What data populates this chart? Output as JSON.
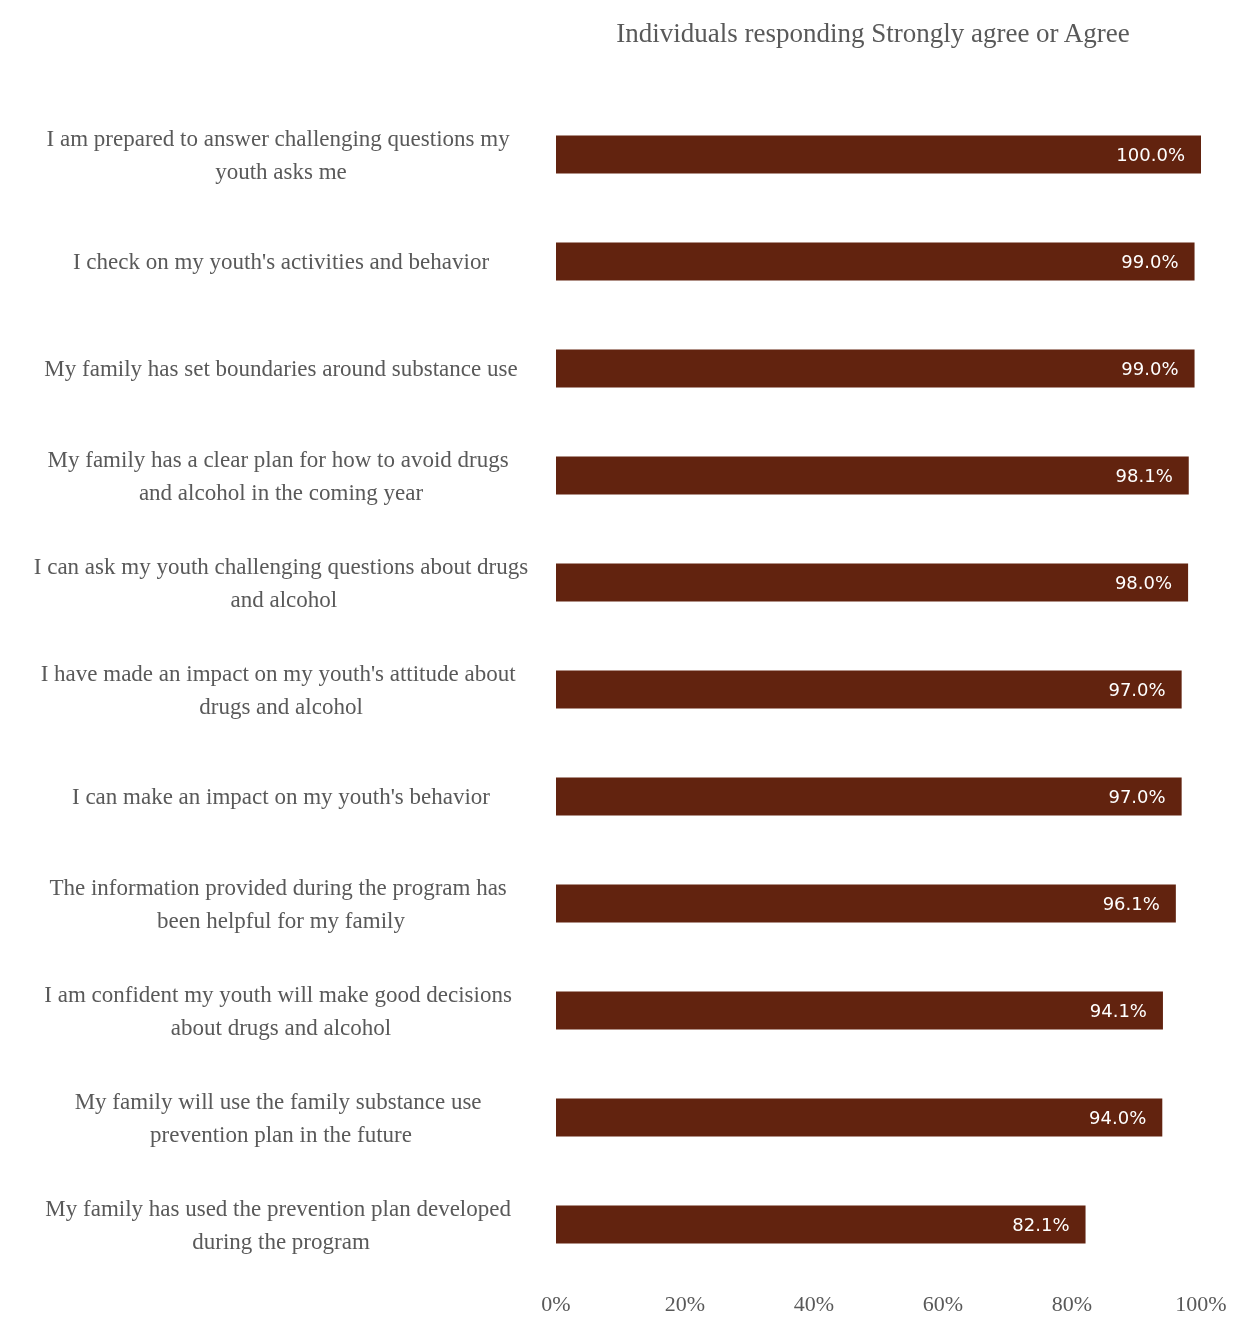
{
  "chart_data": {
    "type": "bar",
    "orientation": "horizontal",
    "title": "Individuals responding Strongly agree or Agree",
    "categories": [
      "I am prepared to answer challenging questions my youth asks me",
      "I check on my youth's activities and behavior",
      "My family has set boundaries around substance use",
      "My family has a clear plan for how to avoid drugs and alcohol in the coming year",
      "I can ask my youth challenging questions about drugs and alcohol",
      "I have made an impact on my youth's attitude about drugs and alcohol",
      "I can make an impact on my youth's behavior",
      "The information provided during the program has been helpful for my family",
      "I am confident my youth will make good decisions about drugs and alcohol",
      "My family will use the family substance use prevention plan in the future",
      "My family has used the prevention plan developed during the program"
    ],
    "values": [
      100.0,
      99.0,
      99.0,
      98.1,
      98.0,
      97.0,
      97.0,
      96.1,
      94.1,
      94.0,
      82.1
    ],
    "value_labels": [
      "100.0%",
      "99.0%",
      "99.0%",
      "98.1%",
      "98.0%",
      "97.0%",
      "97.0%",
      "96.1%",
      "94.1%",
      "94.0%",
      "82.1%"
    ],
    "color": "#62230f",
    "xlim": [
      0,
      100
    ],
    "xticks": [
      {
        "value": 0,
        "label": "0%"
      },
      {
        "value": 20,
        "label": "20%"
      },
      {
        "value": 40,
        "label": "40%"
      },
      {
        "value": 60,
        "label": "60%"
      },
      {
        "value": 80,
        "label": "80%"
      },
      {
        "value": 100,
        "label": "100%"
      }
    ],
    "grid": false
  }
}
